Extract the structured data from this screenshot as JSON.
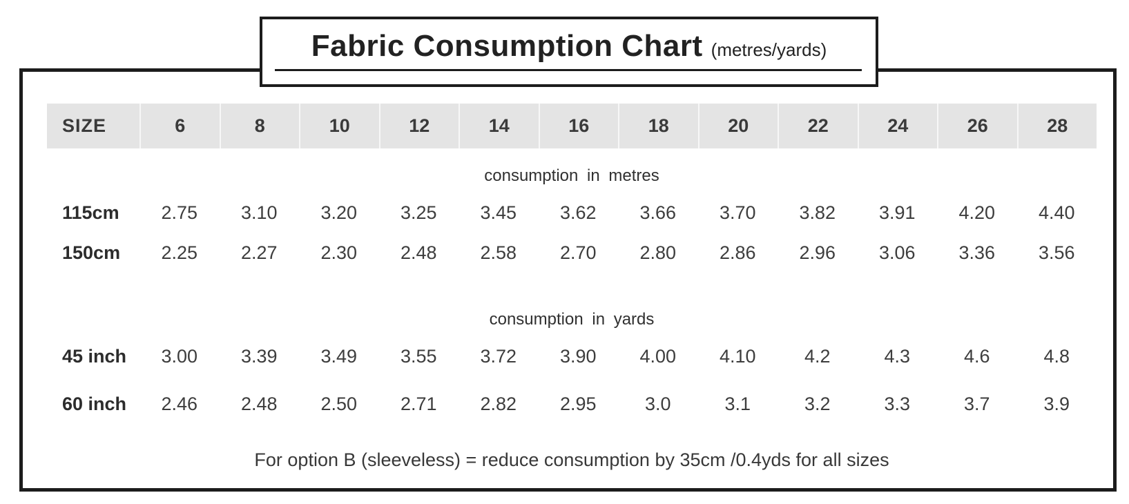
{
  "title": {
    "main": "Fabric Consumption Chart",
    "suffix": "(metres/yards)"
  },
  "table": {
    "header": {
      "label": "SIZE",
      "sizes": [
        "6",
        "8",
        "10",
        "12",
        "14",
        "16",
        "18",
        "20",
        "22",
        "24",
        "26",
        "28"
      ]
    },
    "sections": [
      {
        "heading": "consumption in metres",
        "rows": [
          {
            "label": "115cm",
            "values": [
              "2.75",
              "3.10",
              "3.20",
              "3.25",
              "3.45",
              "3.62",
              "3.66",
              "3.70",
              "3.82",
              "3.91",
              "4.20",
              "4.40"
            ]
          },
          {
            "label": "150cm",
            "values": [
              "2.25",
              "2.27",
              "2.30",
              "2.48",
              "2.58",
              "2.70",
              "2.80",
              "2.86",
              "2.96",
              "3.06",
              "3.36",
              "3.56"
            ]
          }
        ]
      },
      {
        "heading": "consumption in yards",
        "rows": [
          {
            "label": "45 inch",
            "values": [
              "3.00",
              "3.39",
              "3.49",
              "3.55",
              "3.72",
              "3.90",
              "4.00",
              "4.10",
              "4.2",
              "4.3",
              "4.6",
              "4.8"
            ]
          },
          {
            "label": "60 inch",
            "values": [
              "2.46",
              "2.48",
              "2.50",
              "2.71",
              "2.82",
              "2.95",
              "3.0",
              "3.1",
              "3.2",
              "3.3",
              "3.7",
              "3.9"
            ]
          }
        ]
      }
    ],
    "footnote": "For option B (sleeveless) = reduce consumption by 35cm /0.4yds for all sizes"
  },
  "colors": {
    "border": "#1c1c1c",
    "header_background": "#e4e4e4",
    "text": "#3c3c3c",
    "page_background": "#ffffff"
  }
}
